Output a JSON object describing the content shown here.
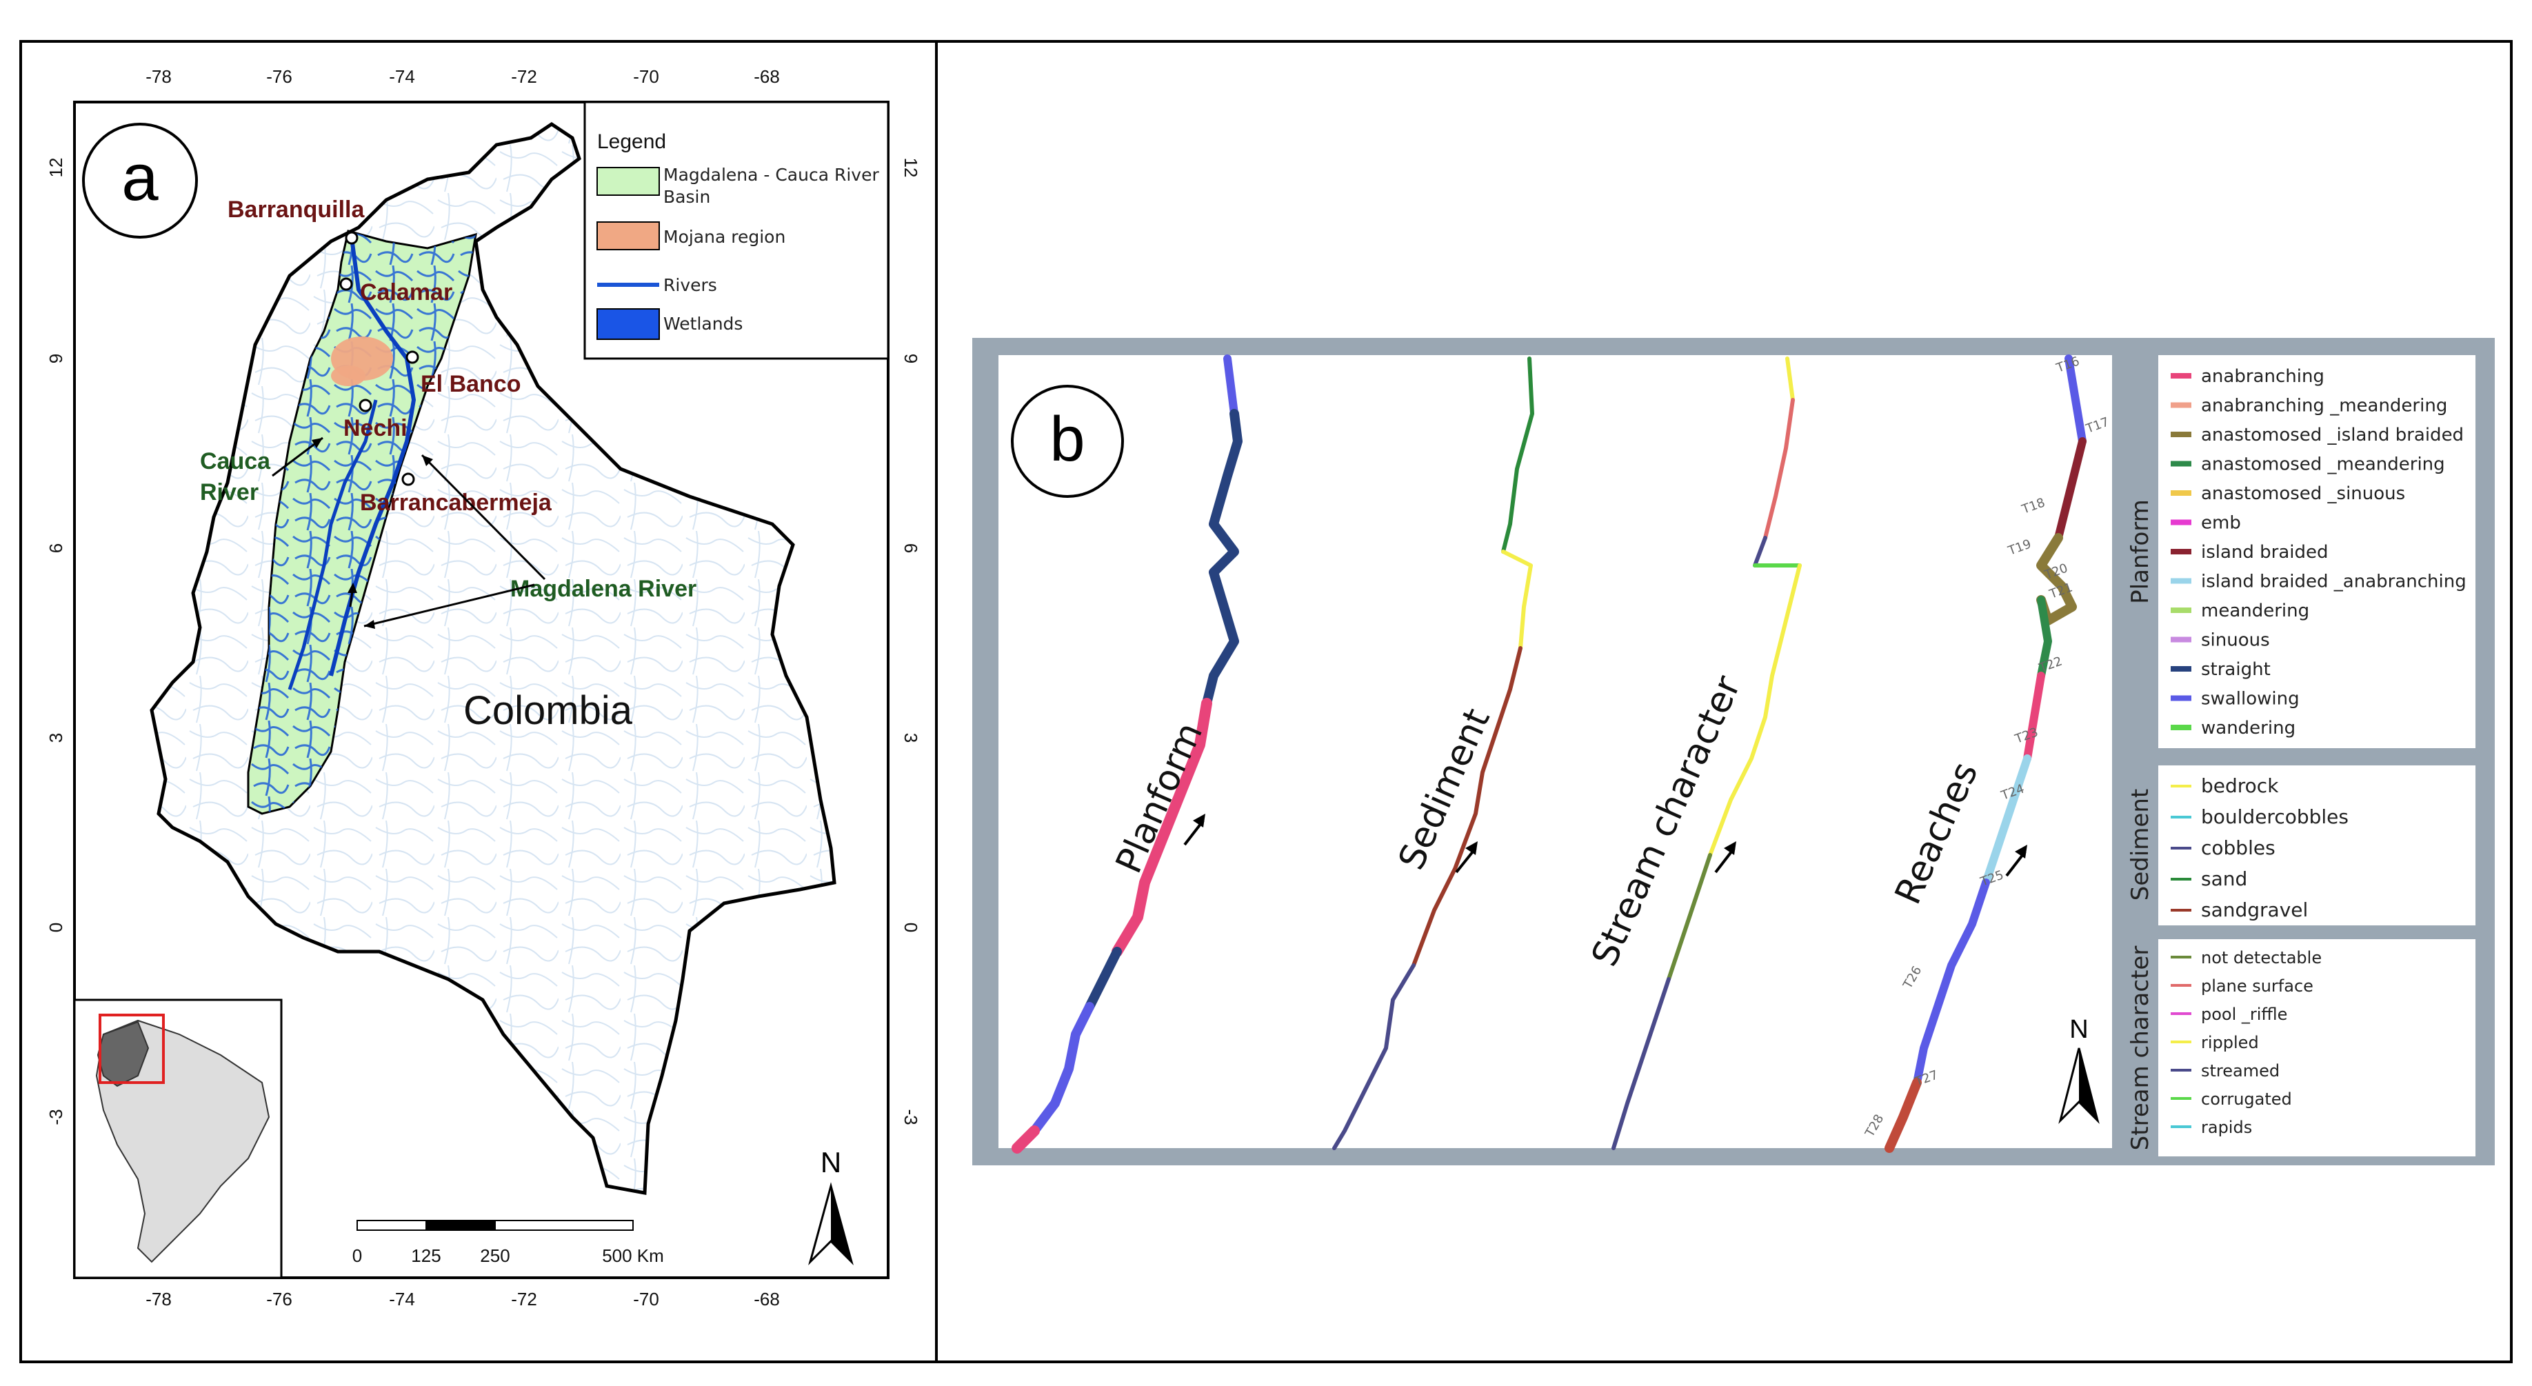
{
  "panel_a": {
    "letter": "a",
    "top_lon_ticks": [
      "-78",
      "-76",
      "-74",
      "-72",
      "-70",
      "-68"
    ],
    "bottom_lon_ticks": [
      "-78",
      "-76",
      "-74",
      "-72",
      "-70",
      "-68"
    ],
    "left_lat_ticks": [
      "12",
      "9",
      "6",
      "3",
      "0",
      "-3"
    ],
    "right_lat_ticks": [
      "12",
      "9",
      "6",
      "3",
      "0",
      "-3"
    ],
    "legend": {
      "title": "Legend",
      "items": [
        {
          "label_lines": [
            "Magdalena - Cauca  River",
            "Basin"
          ],
          "color": "#cdf5c0",
          "kind": "fill"
        },
        {
          "label_lines": [
            "Mojana region"
          ],
          "color": "#f0a884",
          "kind": "fill"
        },
        {
          "label_lines": [
            "Rivers"
          ],
          "color": "#1a55d6",
          "kind": "line"
        },
        {
          "label_lines": [
            "Wetlands"
          ],
          "color": "#1a55e6",
          "kind": "fill"
        }
      ]
    },
    "cities": [
      "Barranquilla",
      "Calamar",
      "El Banco",
      "Nechi",
      "Barrancabermeja"
    ],
    "rivers": {
      "cauca_line1": "Cauca",
      "cauca_line2": "River",
      "magdalena": "Magdalena River"
    },
    "country": "Colombia",
    "scale": {
      "labels": [
        "0",
        "125",
        "250",
        "500 Km"
      ]
    },
    "north": "N"
  },
  "panel_b": {
    "letter": "b",
    "rotated_labels": [
      "Planform",
      "Sediment",
      "Stream character",
      "Reaches"
    ],
    "north": "N",
    "reach_labels": [
      "T16",
      "T17",
      "T18",
      "T19",
      "T20",
      "T21",
      "T22",
      "T23",
      "T24",
      "T25",
      "T26",
      "T27",
      "T28"
    ],
    "legend_groups": [
      {
        "title": "Planform",
        "items": [
          {
            "label": "anabranching",
            "color": "#e8447a"
          },
          {
            "label": "anabranching _meandering",
            "color": "#f0a08a"
          },
          {
            "label": "anastomosed _island braided",
            "color": "#8a7a3a"
          },
          {
            "label": "anastomosed _meandering",
            "color": "#2e8a4a"
          },
          {
            "label": "anastomosed _sinuous",
            "color": "#f0c84a"
          },
          {
            "label": "emb",
            "color": "#e63ad0"
          },
          {
            "label": "island braided",
            "color": "#8a2230"
          },
          {
            "label": "island braided _anabranching",
            "color": "#9ad4ea"
          },
          {
            "label": "meandering",
            "color": "#a8dc6a"
          },
          {
            "label": "sinuous",
            "color": "#c88ae0"
          },
          {
            "label": "straight",
            "color": "#27427e"
          },
          {
            "label": "swallowing",
            "color": "#5a5ae6"
          },
          {
            "label": "wandering",
            "color": "#5ad84a"
          }
        ]
      },
      {
        "title": "Sediment",
        "items": [
          {
            "label": "bedrock",
            "color": "#f4ee4a"
          },
          {
            "label": "bouldercobbles",
            "color": "#4ac8d4"
          },
          {
            "label": "cobbles",
            "color": "#4a4a8a"
          },
          {
            "label": "sand",
            "color": "#2a8a3a"
          },
          {
            "label": "sandgravel",
            "color": "#9a3a2a"
          }
        ]
      },
      {
        "title": "Stream character",
        "items": [
          {
            "label": "not detectable",
            "color": "#6a8a3a"
          },
          {
            "label": "plane surface",
            "color": "#e06a6a"
          },
          {
            "label": "pool _riffle",
            "color": "#e04ad0"
          },
          {
            "label": "rippled",
            "color": "#f4ee4a"
          },
          {
            "label": "streamed",
            "color": "#4a4a8a"
          },
          {
            "label": "corrugated",
            "color": "#5ad84a"
          },
          {
            "label": "rapids",
            "color": "#4ac8d4"
          }
        ]
      }
    ]
  }
}
